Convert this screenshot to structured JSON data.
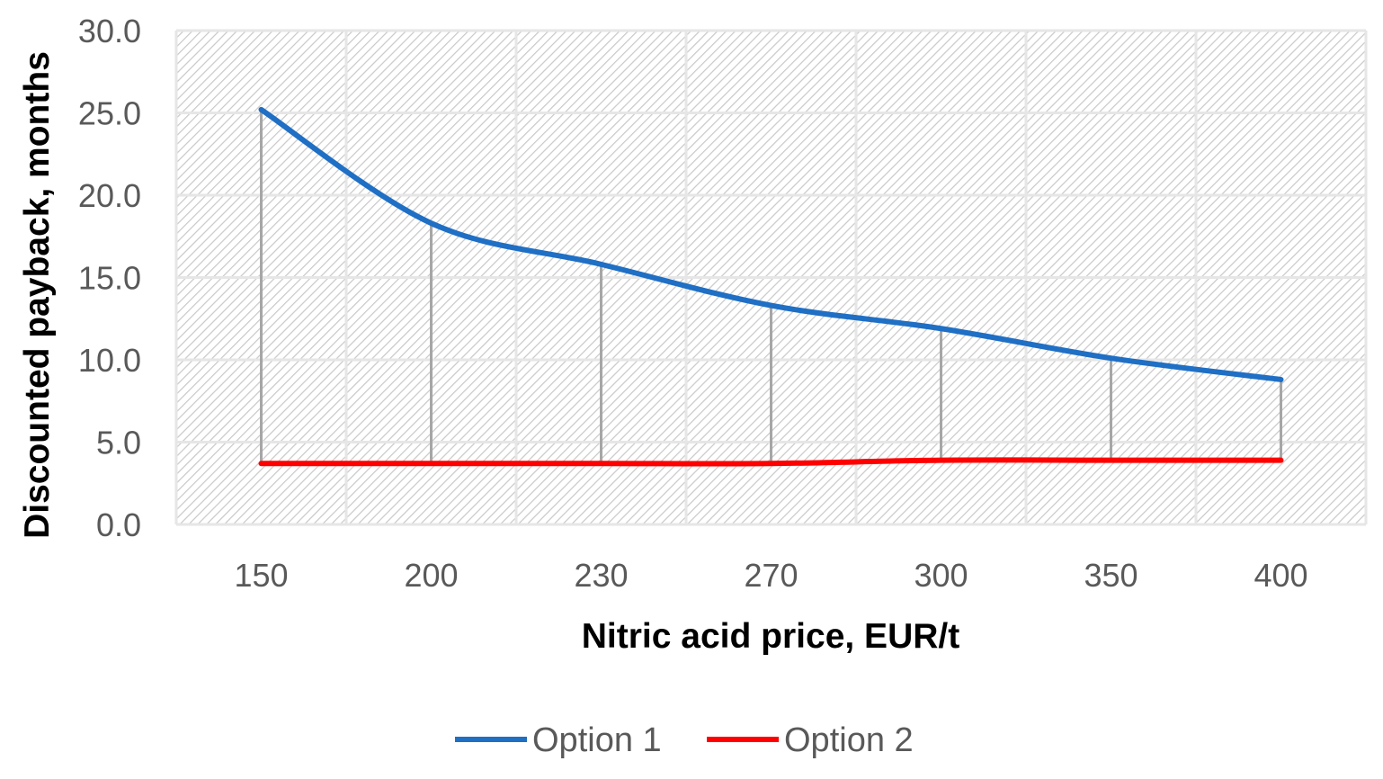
{
  "chart_data": {
    "type": "line",
    "title": "",
    "xlabel": "Nitric acid price, EUR/t",
    "ylabel": "Discounted payback, months",
    "categories": [
      "150",
      "200",
      "230",
      "270",
      "300",
      "350",
      "400"
    ],
    "ylim": [
      0,
      30
    ],
    "yticks": [
      "0.0",
      "5.0",
      "10.0",
      "15.0",
      "20.0",
      "25.0",
      "30.0"
    ],
    "ytick_values": [
      0,
      5,
      10,
      15,
      20,
      25,
      30
    ],
    "grid": true,
    "drop_lines": true,
    "legend_position": "bottom",
    "smooth": true,
    "series": [
      {
        "name": "Option 1",
        "color": "#1f6fc5",
        "values": [
          25.2,
          18.3,
          15.8,
          13.3,
          11.9,
          10.1,
          8.8
        ]
      },
      {
        "name": "Option 2",
        "color": "#ff0000",
        "values": [
          3.7,
          3.7,
          3.7,
          3.7,
          3.9,
          3.9,
          3.9
        ]
      }
    ]
  }
}
